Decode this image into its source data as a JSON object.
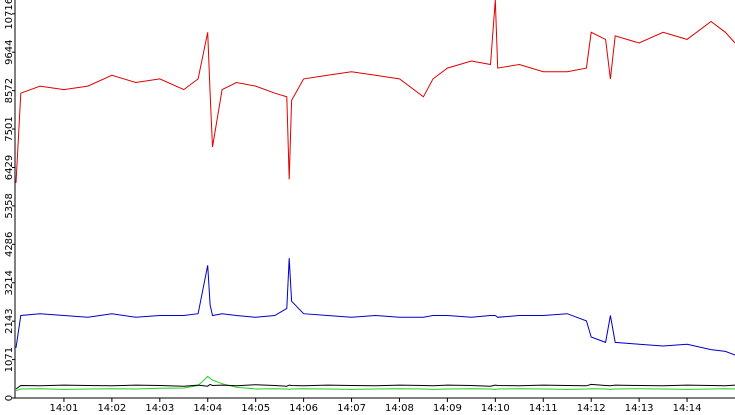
{
  "chart_data": {
    "type": "line",
    "x": [
      0,
      0.1,
      0.5,
      1,
      1.5,
      2,
      2.5,
      3,
      3.5,
      3.8,
      4.0,
      4.05,
      4.1,
      4.3,
      4.6,
      5,
      5.4,
      5.65,
      5.7,
      5.75,
      6,
      6.5,
      7,
      7.5,
      8,
      8.5,
      8.7,
      9,
      9.5,
      9.9,
      10.0,
      10.05,
      10.5,
      11,
      11.5,
      11.9,
      12.0,
      12.3,
      12.4,
      12.5,
      13,
      13.5,
      14,
      14.5,
      14.8,
      15
    ],
    "series": [
      {
        "color": "#e00000",
        "values": [
          6000,
          8500,
          8700,
          8600,
          8700,
          9000,
          8800,
          8900,
          8600,
          8900,
          10200,
          8500,
          7000,
          8600,
          8800,
          8700,
          8500,
          8400,
          6100,
          8300,
          8900,
          9000,
          9100,
          9000,
          8900,
          8400,
          8900,
          9200,
          9400,
          9300,
          11100,
          9200,
          9300,
          9100,
          9100,
          9200,
          10200,
          10000,
          8900,
          10100,
          9900,
          10200,
          10000,
          10500,
          10200,
          9900
        ]
      },
      {
        "color": "#0000c8",
        "values": [
          1400,
          2300,
          2350,
          2300,
          2250,
          2350,
          2250,
          2300,
          2300,
          2350,
          3700,
          2600,
          2300,
          2350,
          2300,
          2250,
          2300,
          2500,
          3900,
          2700,
          2350,
          2300,
          2250,
          2300,
          2250,
          2250,
          2300,
          2300,
          2250,
          2300,
          2300,
          2250,
          2300,
          2300,
          2350,
          2150,
          1700,
          1550,
          2300,
          1550,
          1500,
          1450,
          1500,
          1350,
          1300,
          1200
        ]
      },
      {
        "color": "#20d020",
        "values": [
          200,
          250,
          260,
          240,
          250,
          260,
          250,
          270,
          280,
          350,
          600,
          550,
          500,
          400,
          300,
          250,
          260,
          250,
          240,
          250,
          260,
          250,
          240,
          250,
          260,
          250,
          240,
          250,
          260,
          250,
          240,
          250,
          260,
          250,
          240,
          250,
          260,
          250,
          240,
          250,
          260,
          250,
          240,
          250,
          260,
          250
        ]
      },
      {
        "color": "#000000",
        "values": [
          250,
          350,
          340,
          360,
          350,
          340,
          360,
          350,
          330,
          360,
          330,
          380,
          350,
          360,
          340,
          370,
          350,
          330,
          360,
          350,
          340,
          360,
          350,
          340,
          360,
          350,
          340,
          360,
          350,
          330,
          360,
          350,
          340,
          360,
          350,
          340,
          380,
          350,
          340,
          360,
          350,
          340,
          360,
          350,
          340,
          360
        ]
      }
    ],
    "xlim": [
      0,
      15
    ],
    "ylim": [
      0,
      11100
    ],
    "xticks": [
      {
        "value": 1,
        "label": "14:01"
      },
      {
        "value": 2,
        "label": "14:02"
      },
      {
        "value": 3,
        "label": "14:03"
      },
      {
        "value": 4,
        "label": "14:04"
      },
      {
        "value": 5,
        "label": "14:05"
      },
      {
        "value": 6,
        "label": "14:06"
      },
      {
        "value": 7,
        "label": "14:07"
      },
      {
        "value": 8,
        "label": "14:08"
      },
      {
        "value": 9,
        "label": "14:09"
      },
      {
        "value": 10,
        "label": "14:10"
      },
      {
        "value": 11,
        "label": "14:11"
      },
      {
        "value": 12,
        "label": "14:12"
      },
      {
        "value": 13,
        "label": "14:13"
      },
      {
        "value": 14,
        "label": "14:14"
      }
    ],
    "yticks": [
      0,
      1071,
      2143,
      3214,
      4286,
      5358,
      6429,
      7501,
      8572,
      9644,
      10716
    ]
  }
}
